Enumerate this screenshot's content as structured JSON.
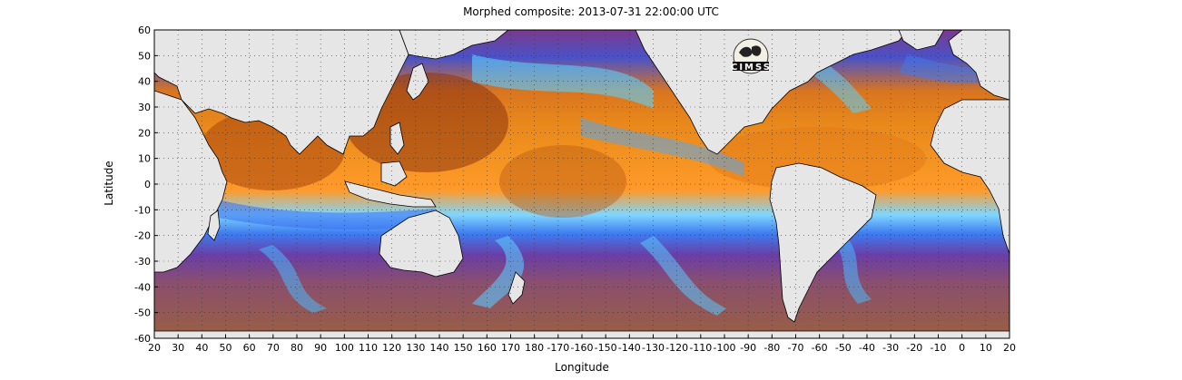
{
  "title": "Morphed composite: 2013-07-31 22:00:00 UTC",
  "xlabel": "Longitude",
  "ylabel": "Latitude",
  "logo_text": "CIMSS",
  "x_ticks": [
    "20",
    "30",
    "40",
    "50",
    "60",
    "70",
    "80",
    "90",
    "100",
    "110",
    "120",
    "130",
    "140",
    "150",
    "160",
    "170",
    "180",
    "-170",
    "-160",
    "-150",
    "-140",
    "-130",
    "-120",
    "-110",
    "-100",
    "-90",
    "-80",
    "-70",
    "-60",
    "-50",
    "-40",
    "-30",
    "-20",
    "-10",
    "0",
    "10",
    "20"
  ],
  "y_ticks": [
    "60",
    "50",
    "40",
    "30",
    "20",
    "10",
    "0",
    "-10",
    "-20",
    "-30",
    "-40",
    "-50",
    "-60"
  ],
  "x_range": [
    20,
    380
  ],
  "y_range": [
    -60,
    60
  ],
  "grid": "dotted",
  "colors": {
    "land": "#e6e6e6",
    "coast": "#000000",
    "dry": "#7a3a8c",
    "low": "#2a3fbf",
    "mid": "#4fb3ff",
    "humid": "#f08a1a",
    "very_humid": "#9a3a10"
  }
}
